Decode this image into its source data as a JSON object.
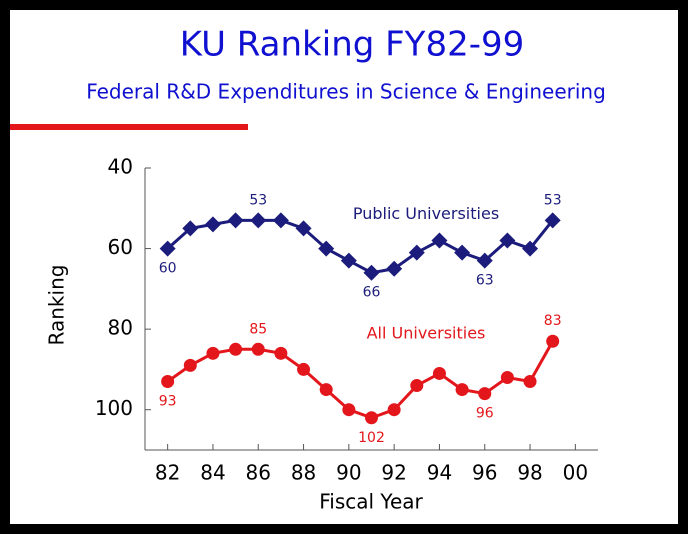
{
  "chart_data": {
    "type": "line",
    "title": "KU Ranking FY82-99",
    "subtitle": "Federal R&D Expenditures in Science & Engineering",
    "x_label": "Fiscal Year",
    "y_label": "Ranking",
    "x": [
      82,
      83,
      84,
      85,
      86,
      87,
      88,
      89,
      90,
      91,
      92,
      93,
      94,
      95,
      96,
      97,
      98,
      99
    ],
    "series": [
      {
        "name": "Public Universities",
        "color": "#1c1c7c",
        "marker": "diamond",
        "values": [
          60,
          55,
          54,
          53,
          53,
          53,
          55,
          60,
          63,
          66,
          65,
          61,
          58,
          61,
          63,
          58,
          60,
          53
        ]
      },
      {
        "name": "All Universities",
        "color": "#e3161c",
        "marker": "circle",
        "values": [
          93,
          89,
          86,
          85,
          85,
          86,
          90,
          95,
          100,
          102,
          100,
          94,
          91,
          95,
          96,
          92,
          93,
          83
        ]
      }
    ],
    "xlim": [
      81,
      101
    ],
    "xticks": [
      82,
      84,
      86,
      88,
      90,
      92,
      94,
      96,
      98,
      {
        "value": 100,
        "label": "00"
      }
    ],
    "ylim": [
      40,
      110
    ],
    "y_inverted": true,
    "yticks": [
      40,
      60,
      80,
      100
    ]
  }
}
